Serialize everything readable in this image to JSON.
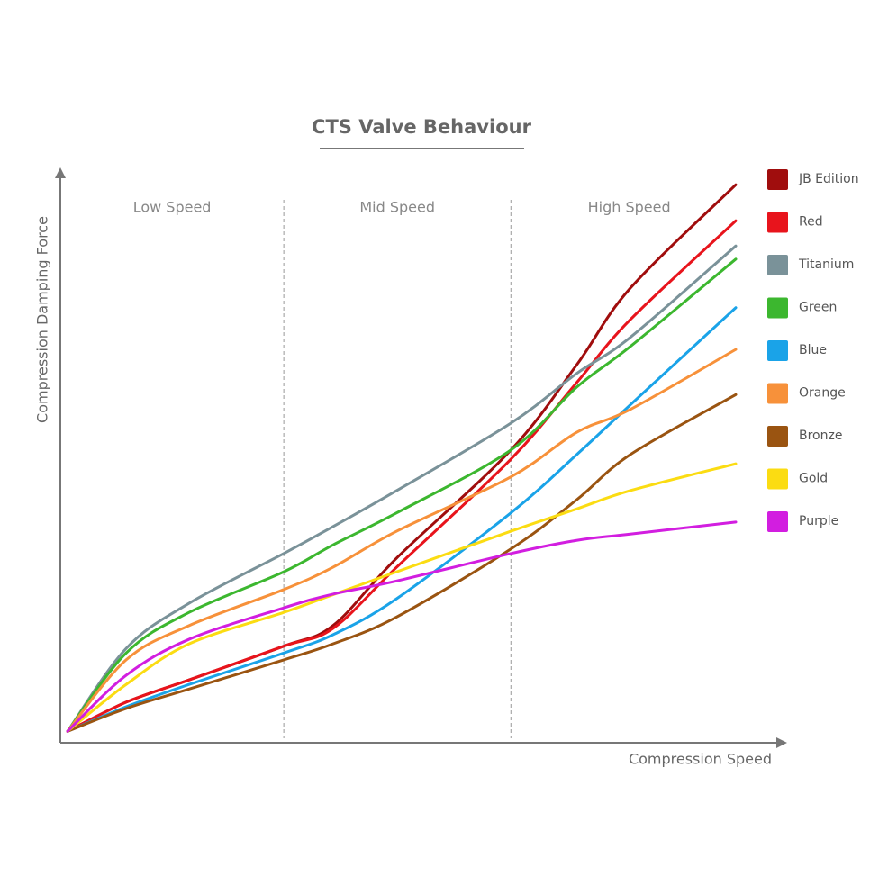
{
  "chart_data": {
    "type": "line",
    "title": "CTS Valve Behaviour",
    "x_label": "Compression Speed",
    "y_label": "Compression Damping Force",
    "xlim": [
      0,
      100
    ],
    "ylim": [
      0,
      100
    ],
    "regions": [
      "Low Speed",
      "Mid Speed",
      "High Speed"
    ],
    "dividers": [
      30.9,
      62.3
    ],
    "x": [
      1,
      9.1,
      17.8,
      30.9,
      37.7,
      46.5,
      62.3,
      71.4,
      78.8,
      93.4
    ],
    "series": [
      {
        "name": "JB Edition",
        "color": "#a00d0d",
        "values": [
          2.0,
          7.1,
          11.0,
          16.9,
          20.5,
          32.3,
          51.2,
          66.1,
          79.5,
          97.6
        ]
      },
      {
        "name": "Red",
        "color": "#e8141c",
        "values": [
          2.0,
          7.1,
          11.0,
          16.9,
          20.0,
          30.7,
          49.6,
          63.0,
          74.0,
          91.3
        ]
      },
      {
        "name": "Titanium",
        "color": "#7a9299",
        "values": [
          2.0,
          16.5,
          24.4,
          33.1,
          37.8,
          44.1,
          55.9,
          64.6,
          70.9,
          86.9
        ]
      },
      {
        "name": "Green",
        "color": "#3cb72f",
        "values": [
          2.0,
          15.7,
          22.8,
          29.9,
          34.6,
          40.2,
          51.2,
          62.2,
          69.3,
          84.6
        ]
      },
      {
        "name": "Blue",
        "color": "#1aa3e8",
        "values": [
          2.0,
          6.3,
          10.2,
          15.7,
          18.9,
          25.2,
          40.2,
          50.4,
          59.1,
          76.1
        ]
      },
      {
        "name": "Orange",
        "color": "#f7913a",
        "values": [
          2.0,
          14.5,
          20.5,
          26.8,
          30.7,
          37.0,
          46.5,
          54.3,
          58.3,
          68.8
        ]
      },
      {
        "name": "Bronze",
        "color": "#9a5411",
        "values": [
          2.0,
          6.0,
          9.4,
          14.5,
          17.3,
          22.0,
          33.9,
          42.5,
          50.4,
          60.9
        ]
      },
      {
        "name": "Gold",
        "color": "#fbdc12",
        "values": [
          2.0,
          10.2,
          17.3,
          22.8,
          25.9,
          29.9,
          37.0,
          40.9,
          44.1,
          48.8
        ]
      },
      {
        "name": "Purple",
        "color": "#d21ee0",
        "values": [
          2.0,
          11.8,
          18.1,
          23.6,
          26.0,
          28.3,
          33.1,
          35.4,
          36.5,
          38.6
        ]
      }
    ]
  }
}
